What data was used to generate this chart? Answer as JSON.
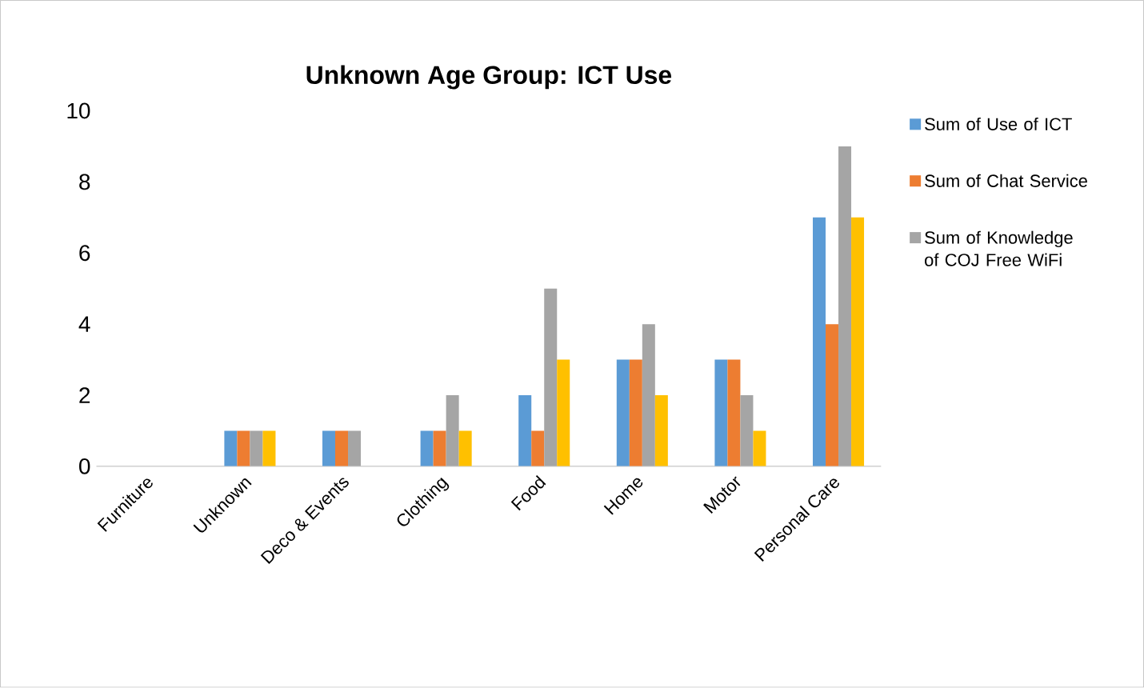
{
  "chart_data": {
    "type": "bar",
    "title": "Unknown Age Group: ICT Use",
    "categories": [
      "Furniture",
      "Unknown",
      "Deco & Events",
      "Clothing",
      "Food",
      "Home",
      "Motor",
      "Personal Care"
    ],
    "series": [
      {
        "name": "Sum of Use of ICT",
        "color": "#5b9bd5",
        "values": [
          0,
          1,
          1,
          1,
          2,
          3,
          3,
          7
        ]
      },
      {
        "name": "Sum of Chat Service",
        "color": "#ed7d31",
        "values": [
          0,
          1,
          1,
          1,
          1,
          3,
          3,
          4
        ]
      },
      {
        "name": "Sum of Knowledge of COJ Free WiFi",
        "color": "#a5a5a5",
        "values": [
          0,
          1,
          1,
          2,
          5,
          4,
          2,
          9
        ]
      },
      {
        "color": "#ffc000",
        "values": [
          0,
          1,
          0,
          1,
          3,
          2,
          1,
          7
        ]
      }
    ],
    "ylim": [
      0,
      10
    ],
    "yticks": [
      0,
      2,
      4,
      6,
      8,
      10
    ],
    "legend": "right"
  }
}
